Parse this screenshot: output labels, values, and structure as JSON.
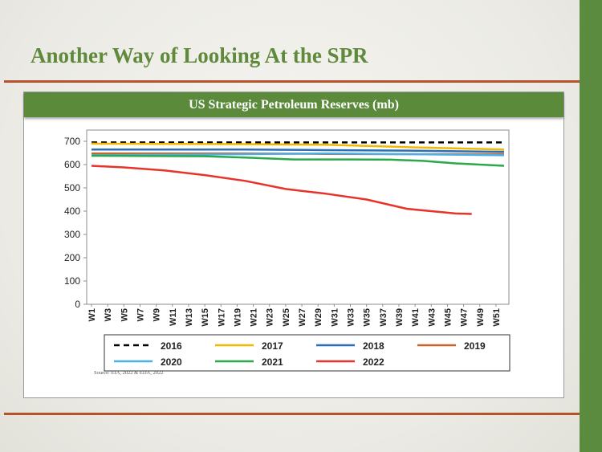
{
  "slide": {
    "title": "Another Way of Looking At the SPR",
    "source": "Source: EIA, 2022 & EDA, 2022"
  },
  "colors": {
    "accent_green": "#5a8a3a",
    "rule_rust": "#b5532a",
    "background": "#ecebe6"
  },
  "chart_data": {
    "type": "line",
    "title": "US Strategic Petroleum Reserves (mb)",
    "xlabel": "",
    "ylabel": "",
    "ylim": [
      0,
      700
    ],
    "yticks": [
      0,
      100,
      200,
      300,
      400,
      500,
      600,
      700
    ],
    "x_tick_labels": [
      "W1",
      "W3",
      "W5",
      "W7",
      "W9",
      "W11",
      "W13",
      "W15",
      "W17",
      "W19",
      "W21",
      "W23",
      "W25",
      "W27",
      "W29",
      "W31",
      "W33",
      "W35",
      "W37",
      "W39",
      "W41",
      "W43",
      "W45",
      "W47",
      "W49",
      "W51"
    ],
    "grid": false,
    "legend_position": "bottom",
    "series": [
      {
        "name": "2016",
        "color": "#000000",
        "dash": true,
        "x": [
          1,
          52
        ],
        "y": [
          695,
          695
        ]
      },
      {
        "name": "2017",
        "color": "#f5b800",
        "x": [
          1,
          20,
          30,
          40,
          52
        ],
        "y": [
          690,
          688,
          685,
          675,
          665
        ]
      },
      {
        "name": "2018",
        "color": "#2a6fb8",
        "x": [
          1,
          20,
          30,
          40,
          52
        ],
        "y": [
          665,
          665,
          662,
          660,
          655
        ]
      },
      {
        "name": "2019",
        "color": "#c8652a",
        "x": [
          1,
          20,
          30,
          40,
          52
        ],
        "y": [
          648,
          648,
          646,
          645,
          645
        ]
      },
      {
        "name": "2020",
        "color": "#4ab0e6",
        "x": [
          1,
          20,
          30,
          40,
          52
        ],
        "y": [
          640,
          645,
          648,
          645,
          640
        ]
      },
      {
        "name": "2021",
        "color": "#2aa84a",
        "x": [
          1,
          15,
          20,
          26,
          33,
          38,
          42,
          46,
          52
        ],
        "y": [
          638,
          636,
          630,
          622,
          622,
          621,
          616,
          605,
          595
        ]
      },
      {
        "name": "2022",
        "color": "#e8332a",
        "x": [
          1,
          5,
          10,
          15,
          20,
          25,
          30,
          35,
          40,
          43,
          46,
          48
        ],
        "y": [
          595,
          588,
          575,
          555,
          530,
          495,
          475,
          450,
          410,
          400,
          390,
          388
        ]
      }
    ]
  }
}
